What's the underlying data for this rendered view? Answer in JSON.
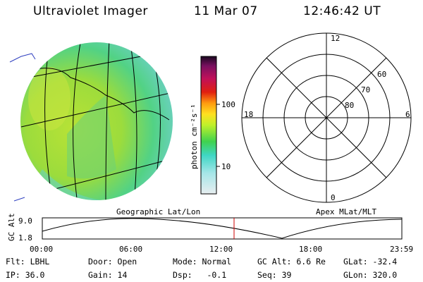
{
  "header": {
    "instrument": "Ultraviolet Imager",
    "date": "11 Mar 07",
    "time": "12:46:42 UT"
  },
  "colorbar": {
    "unit_label": "photon cm⁻²s⁻¹",
    "ticks": [
      "100",
      "10"
    ]
  },
  "polar_plot": {
    "mlt_labels": [
      "12",
      "18",
      "6",
      "0"
    ],
    "lat_labels": [
      "60",
      "70",
      "80"
    ]
  },
  "image_caption": "Geographic Lat/Lon",
  "polar_caption": "Apex MLat/MLT",
  "altitude_plot": {
    "ylabel": "GC Alt",
    "y_ticks": [
      "9.0",
      "1.8"
    ],
    "x_ticks": [
      "00:00",
      "06:00",
      "12:00",
      "18:00",
      "23:59"
    ],
    "marker_color": "#cc0000"
  },
  "info": {
    "filter": "Flt: LBHL",
    "door": "Door: Open",
    "mode": "Mode: Normal",
    "gc_alt": "GC Alt: 6.6 Re",
    "glat": "GLat: -32.4",
    "ip": "IP: 36.0",
    "gain": "Gain: 14",
    "dsp": "Dsp:   -0.1",
    "seq": "Seq: 39",
    "glon": "GLon: 320.0"
  }
}
